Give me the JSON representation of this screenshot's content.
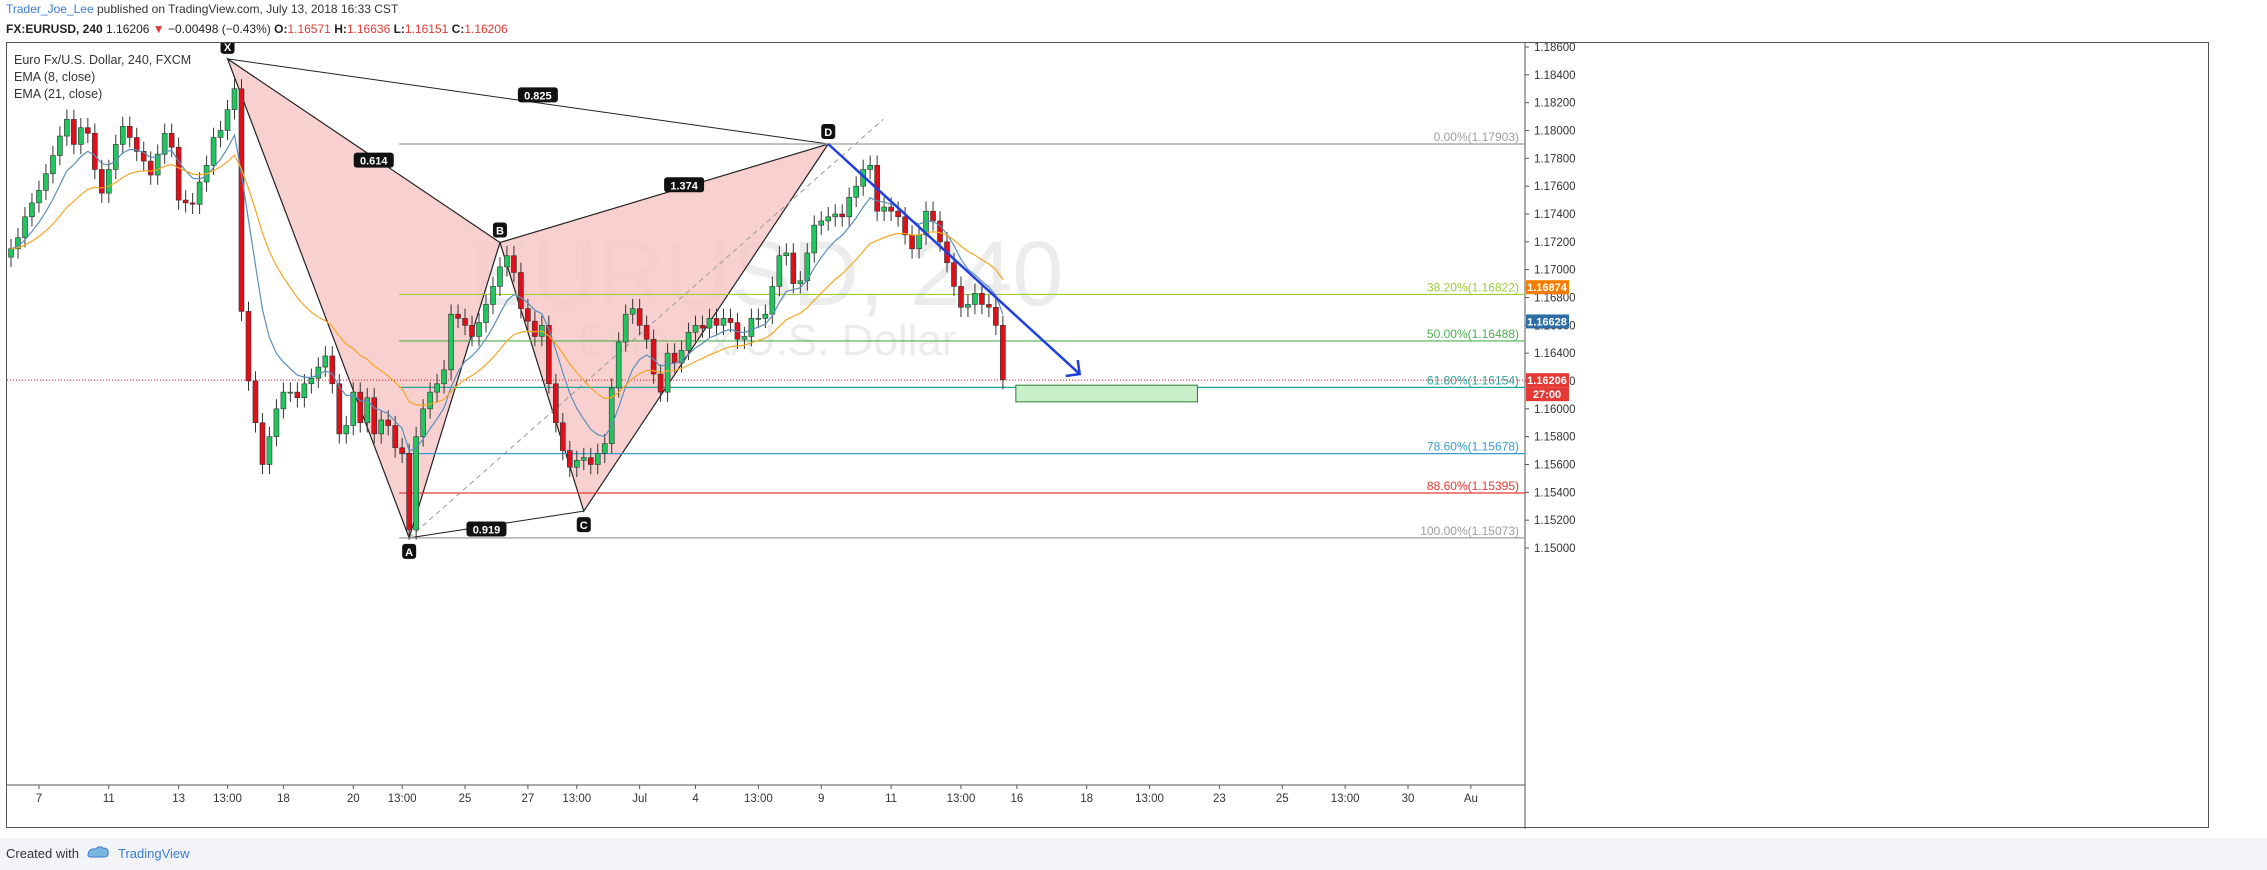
{
  "header": {
    "author": "Trader_Joe_Lee",
    "published": "published on TradingView.com, July 13, 2018 16:33 CST",
    "symbol": "FX:EURUSD, 240",
    "last": "1.16206",
    "change": "−0.00498 (−0.43%)",
    "o_label": "O:",
    "o_value": "1.16571",
    "h_label": "H:",
    "h_value": "1.16636",
    "l_label": "L:",
    "l_value": "1.16151",
    "c_label": "C:",
    "c_value": "1.16206"
  },
  "legend": {
    "title": "Euro Fx/U.S. Dollar, 240, FXCM",
    "ema8": "EMA (8, close)",
    "ema21": "EMA (21, close)"
  },
  "watermark": {
    "line1": "EURUSD, 240",
    "line2": "Euro Fx/U.S. Dollar"
  },
  "footer": {
    "created": "Created with",
    "brand": "TradingView"
  },
  "colors": {
    "up": "#22c55e",
    "down": "#e0101a",
    "ema8": "#5b8fb9",
    "ema21": "#f5a623",
    "pattern_fill": "#f8c8c8",
    "arrow": "#1f3fe0",
    "fib_0": "#9e9e9e",
    "fib_382": "#9ccc3c",
    "fib_50": "#4caf50",
    "fib_618": "#26a69a",
    "fib_786": "#3b9bd1",
    "fib_886": "#e53935",
    "fib_100": "#9e9e9e",
    "target_box": "#c8f0c8",
    "price_tag_orange": "#f57c00",
    "price_tag_blue": "#2e6da4",
    "price_tag_red": "#e53935"
  },
  "chart_data": {
    "type": "candlestick",
    "symbol": "EURUSD",
    "timeframe": "240",
    "ylim": [
      1.149,
      1.187
    ],
    "y_ticks": [
      "1.18600",
      "1.18400",
      "1.18200",
      "1.18000",
      "1.17800",
      "1.17600",
      "1.17400",
      "1.17200",
      "1.17000",
      "1.16800",
      "1.16600",
      "1.16400",
      "1.16200",
      "1.16000",
      "1.15800",
      "1.15600",
      "1.15400",
      "1.15200",
      "1.15000"
    ],
    "x_ticks": [
      {
        "label": "7",
        "i": 4
      },
      {
        "label": "11",
        "i": 14
      },
      {
        "label": "13",
        "i": 24
      },
      {
        "label": "13:00",
        "i": 31
      },
      {
        "label": "18",
        "i": 39
      },
      {
        "label": "20",
        "i": 49
      },
      {
        "label": "13:00",
        "i": 56
      },
      {
        "label": "25",
        "i": 65
      },
      {
        "label": "27",
        "i": 74
      },
      {
        "label": "13:00",
        "i": 81
      },
      {
        "label": "Jul",
        "i": 90
      },
      {
        "label": "4",
        "i": 98
      },
      {
        "label": "13:00",
        "i": 107
      },
      {
        "label": "9",
        "i": 116
      },
      {
        "label": "11",
        "i": 126
      },
      {
        "label": "13:00",
        "i": 136
      },
      {
        "label": "16",
        "i": 144
      },
      {
        "label": "18",
        "i": 154
      },
      {
        "label": "13:00",
        "i": 163
      },
      {
        "label": "23",
        "i": 173
      },
      {
        "label": "25",
        "i": 182
      },
      {
        "label": "13:00",
        "i": 191
      },
      {
        "label": "30",
        "i": 200
      },
      {
        "label": "Au",
        "i": 209
      }
    ],
    "closes": [
      1.1715,
      1.1723,
      1.1738,
      1.1748,
      1.1757,
      1.1769,
      1.1782,
      1.1796,
      1.1808,
      1.179,
      1.1802,
      1.1798,
      1.1772,
      1.1755,
      1.1772,
      1.179,
      1.1803,
      1.1795,
      1.1785,
      1.1778,
      1.1768,
      1.1783,
      1.1798,
      1.1788,
      1.175,
      1.1748,
      1.1747,
      1.1763,
      1.1775,
      1.1795,
      1.18,
      1.1815,
      1.183,
      1.167,
      1.162,
      1.159,
      1.156,
      1.158,
      1.16,
      1.1612,
      1.1612,
      1.1608,
      1.1618,
      1.1622,
      1.163,
      1.1638,
      1.1618,
      1.1582,
      1.1588,
      1.1612,
      1.159,
      1.1608,
      1.1582,
      1.1592,
      1.1588,
      1.1572,
      1.1568,
      1.1513,
      1.158,
      1.16,
      1.1612,
      1.1618,
      1.1628,
      1.1668,
      1.1665,
      1.166,
      1.1652,
      1.1662,
      1.1675,
      1.1688,
      1.1702,
      1.171,
      1.1698,
      1.1672,
      1.1663,
      1.1652,
      1.166,
      1.1618,
      1.159,
      1.157,
      1.1558,
      1.1563,
      1.1565,
      1.156,
      1.1568,
      1.1575,
      1.1615,
      1.1648,
      1.1668,
      1.1672,
      1.166,
      1.165,
      1.1625,
      1.1612,
      1.164,
      1.1633,
      1.1642,
      1.1655,
      1.166,
      1.1658,
      1.1665,
      1.166,
      1.1665,
      1.1662,
      1.165,
      1.1652,
      1.1665,
      1.1665,
      1.1668,
      1.1688,
      1.171,
      1.1712,
      1.169,
      1.1692,
      1.1712,
      1.1732,
      1.1735,
      1.1738,
      1.174,
      1.1738,
      1.1752,
      1.176,
      1.1772,
      1.1775,
      1.1742,
      1.1745,
      1.1742,
      1.1738,
      1.1725,
      1.1715,
      1.1725,
      1.1742,
      1.1735,
      1.172,
      1.1705,
      1.1688,
      1.1673,
      1.1675,
      1.1683,
      1.1675,
      1.1673,
      1.166,
      1.1621
    ],
    "ema8_label": "EMA (8, close)",
    "ema21_label": "EMA (21, close)",
    "harmonic": {
      "points": [
        {
          "label": "X",
          "i": 31,
          "price": 1.18515
        },
        {
          "label": "A",
          "i": 57,
          "price": 1.15073
        },
        {
          "label": "B",
          "i": 70,
          "price": 1.17195
        },
        {
          "label": "C",
          "i": 82,
          "price": 1.15265
        },
        {
          "label": "D",
          "i": 117,
          "price": 1.17903
        }
      ],
      "ratios": [
        "0.614",
        "0.825",
        "1.374",
        "0.919"
      ]
    },
    "fib_levels": [
      {
        "label": "0.00%(1.17903)",
        "price": 1.17903,
        "color": "#9e9e9e"
      },
      {
        "label": "38.20%(1.16822)",
        "price": 1.16822,
        "color": "#9ccc3c"
      },
      {
        "label": "50.00%(1.16488)",
        "price": 1.16488,
        "color": "#4caf50"
      },
      {
        "label": "61.80%(1.16154)",
        "price": 1.16154,
        "color": "#26a69a"
      },
      {
        "label": "78.60%(1.15678)",
        "price": 1.15678,
        "color": "#3b9bd1"
      },
      {
        "label": "88.60%(1.15395)",
        "price": 1.15395,
        "color": "#e53935"
      },
      {
        "label": "100.00%(1.15073)",
        "price": 1.15073,
        "color": "#9e9e9e"
      }
    ],
    "target_zone": [
      1.1605,
      1.1617
    ],
    "last_price_line": 1.16206,
    "price_tags": [
      {
        "text": "1.16874",
        "price": 1.16874,
        "color": "#f57c00"
      },
      {
        "text": "1.16628",
        "price": 1.16628,
        "color": "#2e6da4"
      },
      {
        "text": "1.16206",
        "price": 1.16206,
        "color": "#e53935"
      },
      {
        "text": "27:00",
        "price": 1.16206,
        "color": "#e53935"
      }
    ]
  }
}
